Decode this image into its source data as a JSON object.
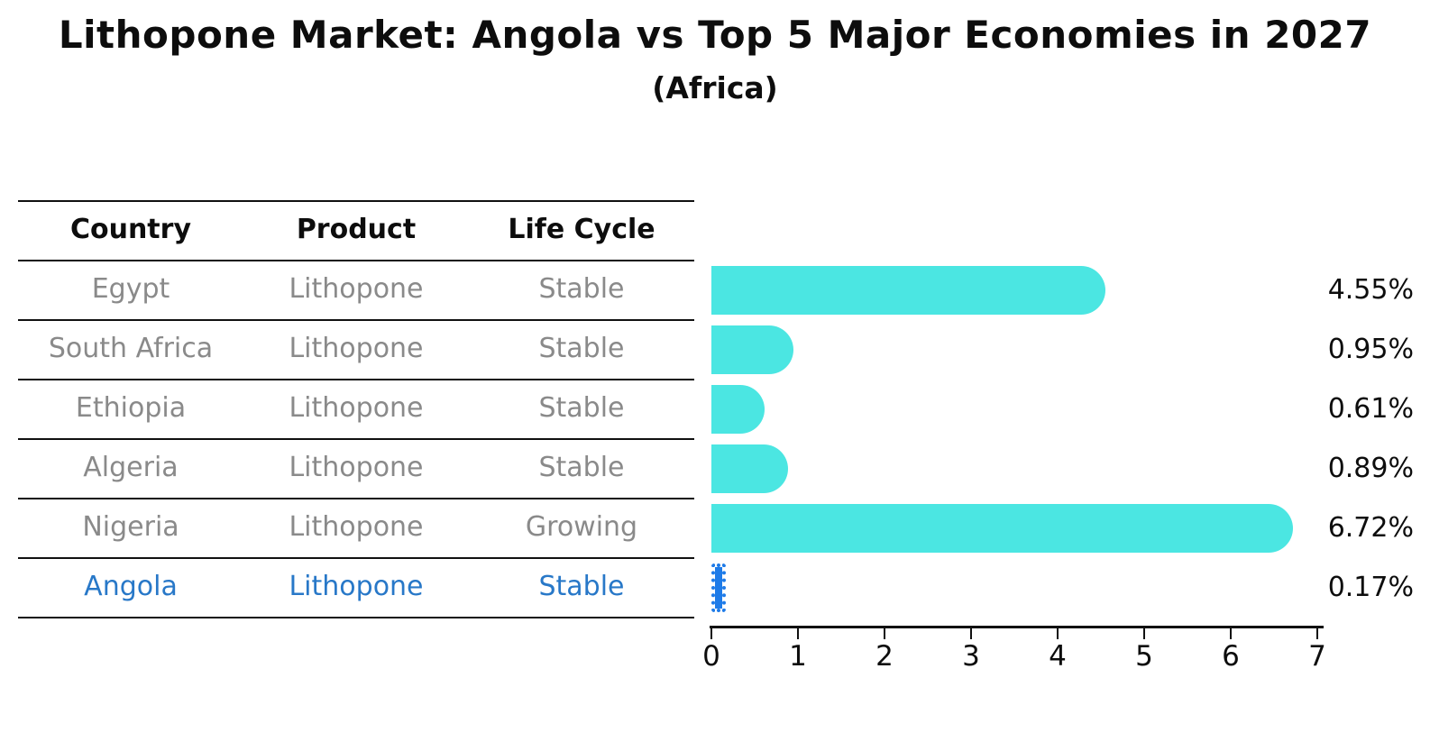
{
  "title": "Lithopone Market: Angola vs Top 5 Major Economies in 2027",
  "subtitle": "(Africa)",
  "colors": {
    "bar": "#4BE6E2",
    "highlight_bar": "#1E7BE8",
    "highlight_text": "#2878C8",
    "table_text": "#8a8a8a",
    "heading_text": "#0d0d0d",
    "axis": "#111111"
  },
  "table": {
    "headers": [
      "Country",
      "Product",
      "Life Cycle"
    ],
    "rows": [
      {
        "country": "Egypt",
        "product": "Lithopone",
        "life_cycle": "Stable",
        "highlight": false
      },
      {
        "country": "South Africa",
        "product": "Lithopone",
        "life_cycle": "Stable",
        "highlight": false
      },
      {
        "country": "Ethiopia",
        "product": "Lithopone",
        "life_cycle": "Stable",
        "highlight": false
      },
      {
        "country": "Algeria",
        "product": "Lithopone",
        "life_cycle": "Stable",
        "highlight": false
      },
      {
        "country": "Nigeria",
        "product": "Lithopone",
        "life_cycle": "Growing",
        "highlight": false
      },
      {
        "country": "Angola",
        "product": "Lithopone",
        "life_cycle": "Stable",
        "highlight": true
      }
    ]
  },
  "chart_data": {
    "type": "bar",
    "orientation": "horizontal",
    "title": "Lithopone Market: Angola vs Top 5 Major Economies in 2027",
    "subtitle": "(Africa)",
    "categories": [
      "Egypt",
      "South Africa",
      "Ethiopia",
      "Algeria",
      "Nigeria",
      "Angola"
    ],
    "values": [
      4.55,
      0.95,
      0.61,
      0.89,
      6.72,
      0.17
    ],
    "value_labels": [
      "4.55%",
      "0.95%",
      "0.61%",
      "0.89%",
      "6.72%",
      "0.17%"
    ],
    "highlight_index": 5,
    "bar_color": "#4BE6E2",
    "highlight_color": "#1E7BE8",
    "xlabel": "",
    "ylabel": "",
    "xlim": [
      0,
      7
    ],
    "x_ticks": [
      0,
      1,
      2,
      3,
      4,
      5,
      6,
      7
    ],
    "grid": false,
    "legend": false
  }
}
